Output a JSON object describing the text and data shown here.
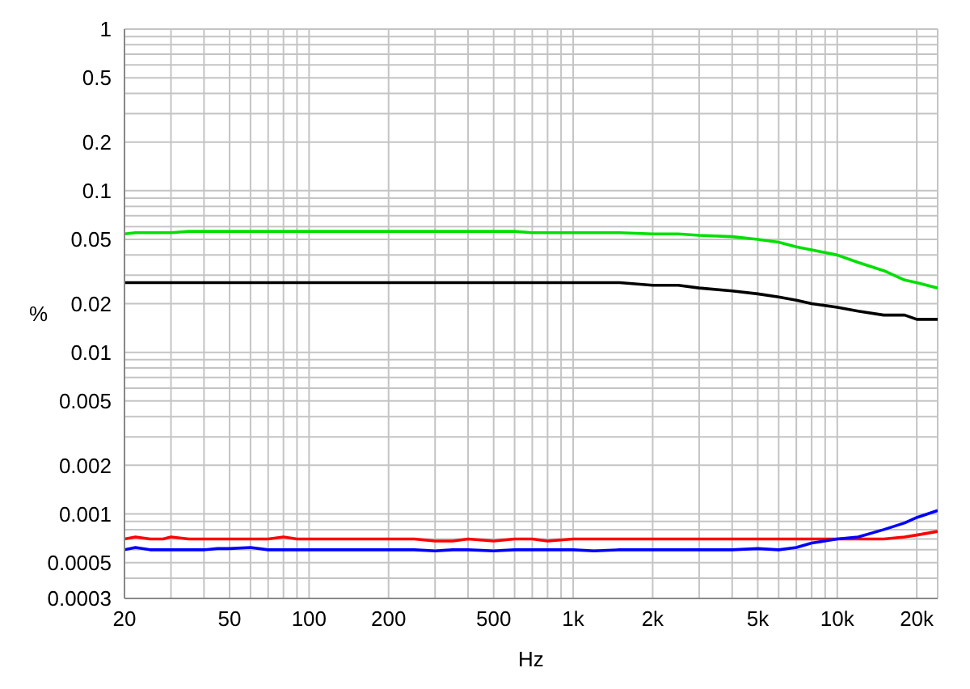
{
  "chart_data": {
    "type": "line",
    "xlabel": "Hz",
    "ylabel": "%",
    "log": "xy",
    "grid": true,
    "marker": "none",
    "line_style": "solid",
    "xlim": [
      20,
      24000
    ],
    "ylim": [
      0.0003,
      1
    ],
    "xticks": [
      20,
      {
        "value": 30,
        "label": null
      },
      {
        "value": 40,
        "label": null
      },
      50,
      {
        "value": 60,
        "label": null
      },
      {
        "value": 70,
        "label": null
      },
      {
        "value": 80,
        "label": null
      },
      {
        "value": 90,
        "label": null
      },
      100,
      200,
      {
        "value": 300,
        "label": null
      },
      {
        "value": 400,
        "label": null
      },
      500,
      {
        "value": 600,
        "label": null
      },
      {
        "value": 700,
        "label": null
      },
      {
        "value": 800,
        "label": null
      },
      {
        "value": 900,
        "label": null
      },
      {
        "value": 1000,
        "label": "1k"
      },
      {
        "value": 2000,
        "label": "2k"
      },
      {
        "value": 3000,
        "label": null
      },
      {
        "value": 4000,
        "label": null
      },
      {
        "value": 5000,
        "label": "5k"
      },
      {
        "value": 6000,
        "label": null
      },
      {
        "value": 7000,
        "label": null
      },
      {
        "value": 8000,
        "label": null
      },
      {
        "value": 9000,
        "label": null
      },
      {
        "value": 10000,
        "label": "10k"
      },
      {
        "value": 20000,
        "label": "20k"
      }
    ],
    "yticks": [
      0.0003,
      {
        "value": 0.0004,
        "label": null
      },
      0.0005,
      {
        "value": 0.0006,
        "label": null
      },
      {
        "value": 0.0007,
        "label": null
      },
      {
        "value": 0.0008,
        "label": null
      },
      {
        "value": 0.0009,
        "label": null
      },
      0.001,
      0.002,
      {
        "value": 0.003,
        "label": null
      },
      {
        "value": 0.004,
        "label": null
      },
      0.005,
      {
        "value": 0.006,
        "label": null
      },
      {
        "value": 0.007,
        "label": null
      },
      {
        "value": 0.008,
        "label": null
      },
      {
        "value": 0.009,
        "label": null
      },
      0.01,
      0.02,
      {
        "value": 0.03,
        "label": null
      },
      {
        "value": 0.04,
        "label": null
      },
      0.05,
      {
        "value": 0.06,
        "label": null
      },
      {
        "value": 0.07,
        "label": null
      },
      {
        "value": 0.08,
        "label": null
      },
      {
        "value": 0.09,
        "label": null
      },
      0.1,
      0.2,
      {
        "value": 0.3,
        "label": null
      },
      {
        "value": 0.4,
        "label": null
      },
      0.5,
      {
        "value": 0.6,
        "label": null
      },
      {
        "value": 0.7,
        "label": null
      },
      {
        "value": 0.8,
        "label": null
      },
      {
        "value": 0.9,
        "label": null
      },
      1
    ],
    "x": [
      20,
      22,
      25,
      28,
      30,
      35,
      40,
      45,
      50,
      60,
      70,
      80,
      90,
      100,
      120,
      150,
      200,
      250,
      300,
      350,
      400,
      500,
      600,
      700,
      800,
      1000,
      1200,
      1500,
      2000,
      2500,
      3000,
      4000,
      5000,
      6000,
      7000,
      8000,
      10000,
      12000,
      15000,
      18000,
      20000,
      24000
    ],
    "series": [
      {
        "color": "#00e000",
        "values": [
          0.054,
          0.055,
          0.055,
          0.055,
          0.055,
          0.056,
          0.056,
          0.056,
          0.056,
          0.056,
          0.056,
          0.056,
          0.056,
          0.056,
          0.056,
          0.056,
          0.056,
          0.056,
          0.056,
          0.056,
          0.056,
          0.056,
          0.056,
          0.055,
          0.055,
          0.055,
          0.055,
          0.055,
          0.054,
          0.054,
          0.053,
          0.052,
          0.05,
          0.048,
          0.045,
          0.043,
          0.04,
          0.036,
          0.032,
          0.028,
          0.027,
          0.025
        ]
      },
      {
        "color": "#000000",
        "values": [
          0.027,
          0.027,
          0.027,
          0.027,
          0.027,
          0.027,
          0.027,
          0.027,
          0.027,
          0.027,
          0.027,
          0.027,
          0.027,
          0.027,
          0.027,
          0.027,
          0.027,
          0.027,
          0.027,
          0.027,
          0.027,
          0.027,
          0.027,
          0.027,
          0.027,
          0.027,
          0.027,
          0.027,
          0.026,
          0.026,
          0.025,
          0.024,
          0.023,
          0.022,
          0.021,
          0.02,
          0.019,
          0.018,
          0.017,
          0.017,
          0.016,
          0.016
        ]
      },
      {
        "color": "#ff0000",
        "values": [
          0.0007,
          0.00072,
          0.0007,
          0.0007,
          0.00072,
          0.0007,
          0.0007,
          0.0007,
          0.0007,
          0.0007,
          0.0007,
          0.00072,
          0.0007,
          0.0007,
          0.0007,
          0.0007,
          0.0007,
          0.0007,
          0.00068,
          0.00068,
          0.0007,
          0.00068,
          0.0007,
          0.0007,
          0.00068,
          0.0007,
          0.0007,
          0.0007,
          0.0007,
          0.0007,
          0.0007,
          0.0007,
          0.0007,
          0.0007,
          0.0007,
          0.0007,
          0.0007,
          0.0007,
          0.0007,
          0.00072,
          0.00074,
          0.00078
        ]
      },
      {
        "color": "#0000ff",
        "values": [
          0.0006,
          0.00062,
          0.0006,
          0.0006,
          0.0006,
          0.0006,
          0.0006,
          0.00061,
          0.00061,
          0.00062,
          0.0006,
          0.0006,
          0.0006,
          0.0006,
          0.0006,
          0.0006,
          0.0006,
          0.0006,
          0.00059,
          0.0006,
          0.0006,
          0.00059,
          0.0006,
          0.0006,
          0.0006,
          0.0006,
          0.00059,
          0.0006,
          0.0006,
          0.0006,
          0.0006,
          0.0006,
          0.00061,
          0.0006,
          0.00062,
          0.00066,
          0.0007,
          0.00072,
          0.0008,
          0.00088,
          0.00095,
          0.00105
        ]
      }
    ]
  }
}
